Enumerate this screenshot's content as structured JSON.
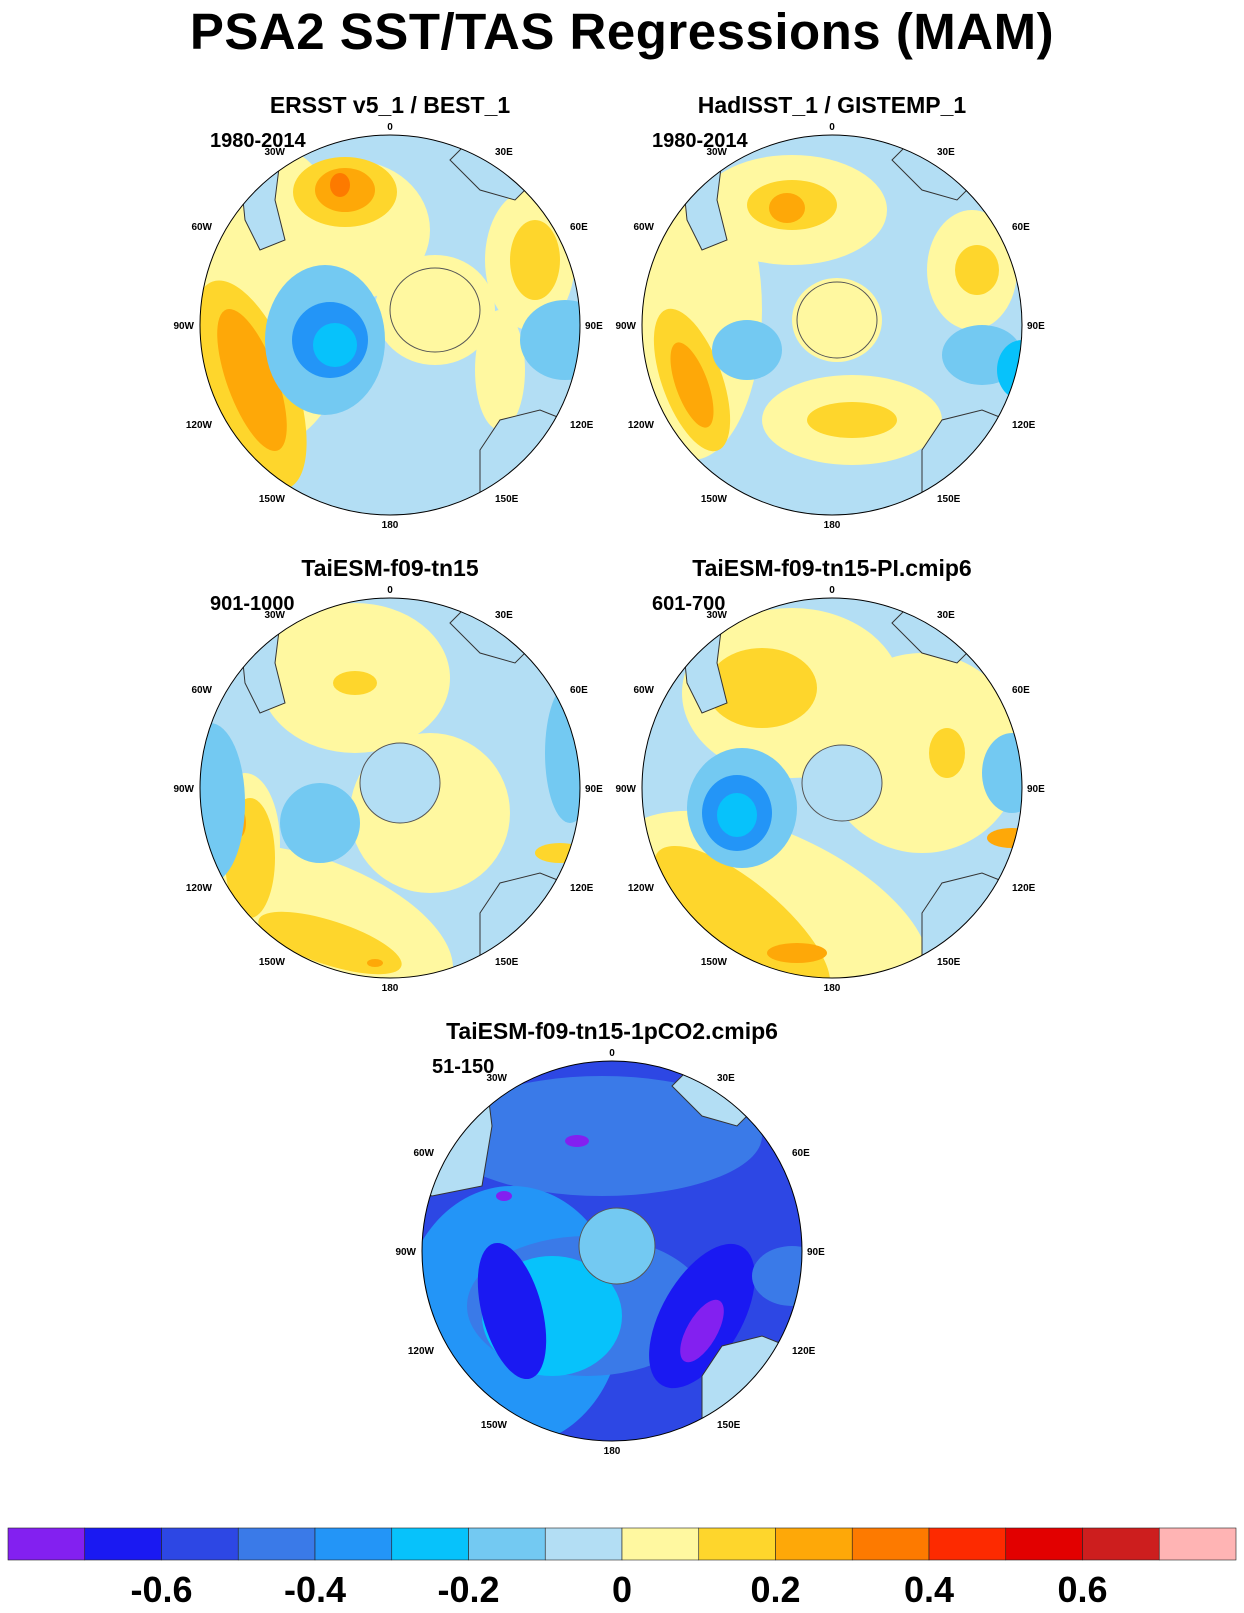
{
  "title": "PSA2 SST/TAS Regressions (MAM)",
  "panels": [
    {
      "title": "ERSST v5_1 / BEST_1",
      "period": "1980-2014"
    },
    {
      "title": "HadISST_1 / GISTEMP_1",
      "period": "1980-2014"
    },
    {
      "title": "TaiESM-f09-tn15",
      "period": "901-1000"
    },
    {
      "title": "TaiESM-f09-tn15-PI.cmip6",
      "period": "601-700"
    },
    {
      "title": "TaiESM-f09-tn15-1pCO2.cmip6",
      "period": "51-150"
    }
  ],
  "lon_labels": {
    "l0": "0",
    "l30e": "30E",
    "l60e": "60E",
    "l90e": "90E",
    "l120e": "120E",
    "l150e": "150E",
    "l180": "180",
    "l150w": "150W",
    "l120w": "120W",
    "l90w": "90W",
    "l60w": "60W",
    "l30w": "30W"
  },
  "colorbar": {
    "colors": [
      "#8320f0",
      "#1a19f2",
      "#2d47e4",
      "#3a7ae8",
      "#2395f7",
      "#07c2fb",
      "#73c9f2",
      "#b3def4",
      "#fff8a0",
      "#fed62c",
      "#fea808",
      "#fd7a00",
      "#fd2a00",
      "#e20000",
      "#cd1e1e",
      "#ffb4b4"
    ],
    "labels": [
      "-0.6",
      "-0.4",
      "-0.2",
      "0",
      "0.2",
      "0.4",
      "0.6"
    ]
  }
}
